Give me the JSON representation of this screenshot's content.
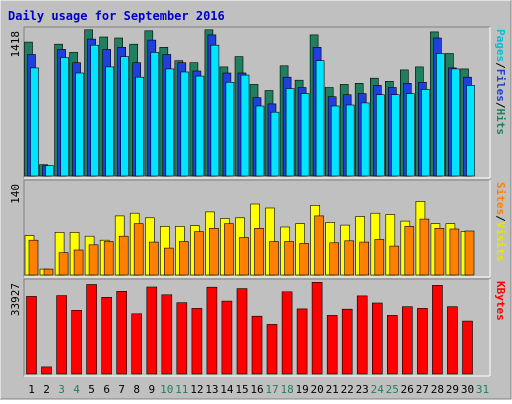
{
  "chart_data": {
    "type": "bar",
    "title": "Daily usage for September 2016",
    "categories": [
      "1",
      "2",
      "3",
      "4",
      "5",
      "6",
      "7",
      "8",
      "9",
      "10",
      "11",
      "12",
      "13",
      "14",
      "15",
      "16",
      "17",
      "18",
      "19",
      "20",
      "21",
      "22",
      "23",
      "24",
      "25",
      "26",
      "27",
      "28",
      "29",
      "30",
      "31"
    ],
    "weekend_days": [
      "3",
      "4",
      "10",
      "11",
      "17",
      "18",
      "24",
      "25",
      "31"
    ],
    "panels": [
      {
        "id": "hits",
        "ymax": 1418,
        "ymax_label": "1418",
        "legend": [
          "Pages",
          "/",
          "Files",
          "/",
          "Hits"
        ],
        "series": [
          {
            "name": "Hits",
            "color": "#1f7f5f",
            "values": [
              1300,
              110,
              1280,
              1200,
              1420,
              1350,
              1340,
              1280,
              1410,
              1250,
              1120,
              1100,
              1420,
              1060,
              1160,
              890,
              830,
              1070,
              930,
              1370,
              860,
              890,
              900,
              950,
              920,
              1030,
              1060,
              1400,
              1190,
              1040
            ]
          },
          {
            "name": "Files",
            "color": "#1f3fdf",
            "values": [
              1180,
              100,
              1230,
              1100,
              1330,
              1230,
              1250,
              1100,
              1320,
              1180,
              1100,
              1020,
              1370,
              1000,
              1000,
              760,
              700,
              960,
              860,
              1250,
              770,
              790,
              800,
              880,
              860,
              900,
              910,
              1340,
              1050,
              960
            ]
          },
          {
            "name": "Pages",
            "color": "#00e5ff",
            "values": [
              1050,
              100,
              1150,
              1000,
              1270,
              1060,
              1160,
              960,
              1200,
              1040,
              1010,
              970,
              1270,
              910,
              980,
              680,
              620,
              850,
              800,
              1120,
              680,
              690,
              710,
              790,
              790,
              800,
              840,
              1190,
              1040,
              880
            ]
          }
        ]
      },
      {
        "id": "visits",
        "ymax": 140,
        "ymax_label": "140",
        "legend": [
          "Sites",
          "/",
          "Visits"
        ],
        "series": [
          {
            "name": "Visits",
            "color": "#ffff00",
            "values": [
              60,
              9,
              65,
              65,
              59,
              53,
              90,
              94,
              87,
              74,
              74,
              75,
              96,
              86,
              87,
              108,
              102,
              73,
              78,
              106,
              80,
              76,
              89,
              94,
              92,
              82,
              112,
              78,
              78,
              66
            ]
          },
          {
            "name": "Sites",
            "color": "#ff8000",
            "values": [
              53,
              9,
              34,
              38,
              46,
              51,
              59,
              78,
              50,
              41,
              51,
              66,
              71,
              78,
              57,
              71,
              51,
              51,
              48,
              90,
              49,
              52,
              50,
              54,
              44,
              74,
              85,
              71,
              70,
              67
            ]
          }
        ]
      },
      {
        "id": "kbytes",
        "ymax": 33927,
        "ymax_label": "33927",
        "legend": [
          "KBytes"
        ],
        "series": [
          {
            "name": "KBytes",
            "color": "#ff0000",
            "values": [
              28600,
              2600,
              28900,
              23500,
              33000,
              28300,
              30500,
              22200,
              32100,
              29200,
              26300,
              24200,
              32000,
              26900,
              31500,
              21300,
              18300,
              30300,
              24000,
              33800,
              21600,
              23900,
              28800,
              26200,
              21600,
              24800,
              24200,
              32700,
              24800,
              19500
            ]
          }
        ]
      }
    ]
  }
}
